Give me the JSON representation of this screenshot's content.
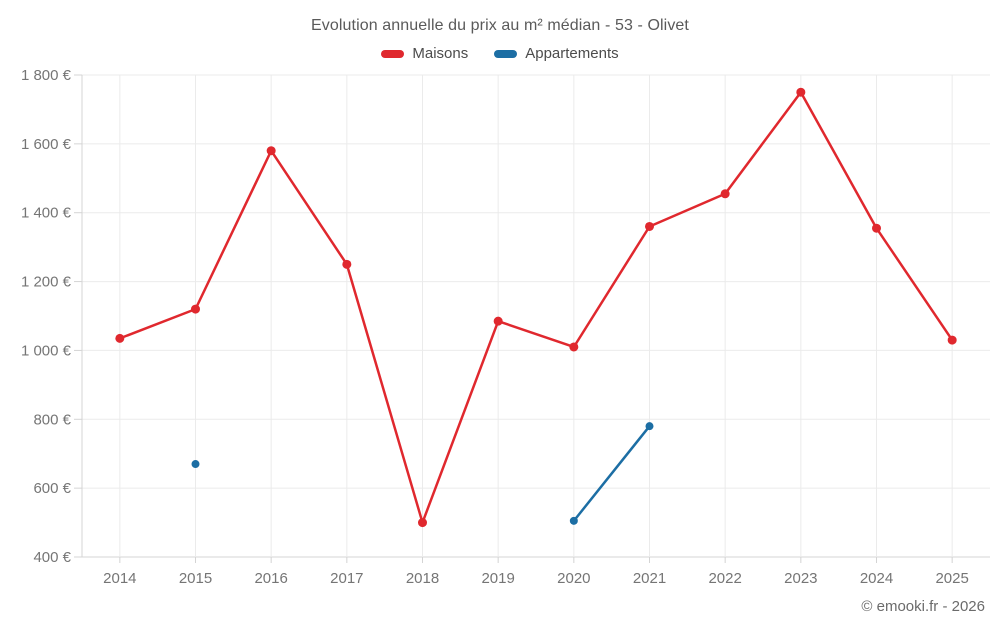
{
  "chart_data": {
    "type": "line",
    "title": "Evolution annuelle du prix au m² médian - 53 - Olivet",
    "categories": [
      "2014",
      "2015",
      "2016",
      "2017",
      "2018",
      "2019",
      "2020",
      "2021",
      "2022",
      "2023",
      "2024",
      "2025"
    ],
    "series": [
      {
        "name": "Maisons",
        "color": "#e0282e",
        "values": [
          1035,
          1120,
          1580,
          1250,
          500,
          1085,
          1010,
          1360,
          1455,
          1750,
          1355,
          1030
        ]
      },
      {
        "name": "Appartements",
        "color": "#1c6ea4",
        "values": [
          null,
          670,
          null,
          null,
          null,
          null,
          505,
          780,
          null,
          null,
          null,
          null
        ]
      }
    ],
    "ylim": [
      400,
      1800
    ],
    "ytick_step": 200,
    "ytick_labels": [
      "400 €",
      "600 €",
      "800 €",
      "1 000 €",
      "1 200 €",
      "1 400 €",
      "1 600 €",
      "1 800 €"
    ],
    "ytick_suffix": " €",
    "grid": true,
    "legend_position": "top",
    "footer": "© emooki.fr - 2026",
    "colors": {
      "grid_line": "#ebebeb",
      "axis_line": "#d4d4d4",
      "tick_text": "#757575",
      "title_text": "#5a5a5a",
      "background": "#ffffff"
    }
  }
}
